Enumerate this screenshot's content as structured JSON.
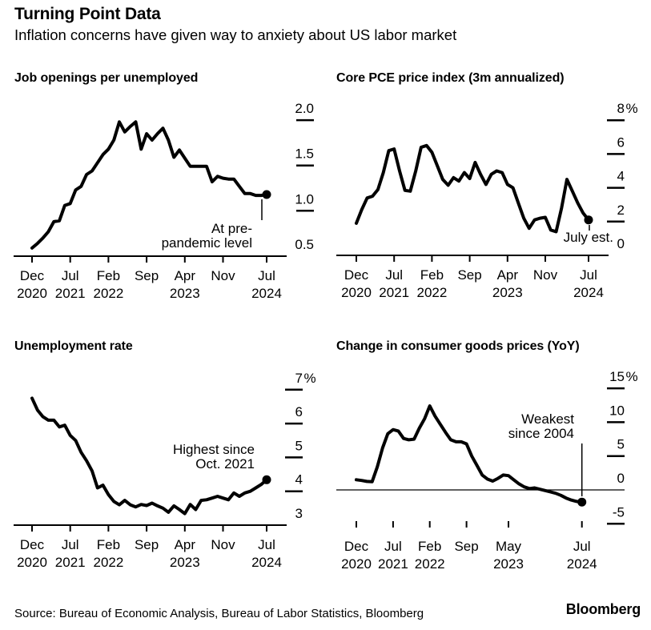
{
  "header": {
    "title": "Turning Point Data",
    "subtitle": "Inflation concerns have given way to anxiety about US labor market"
  },
  "footer": {
    "source": "Source: Bureau of Economic Analysis, Bureau of Labor Statistics, Bloomberg",
    "logo": "Bloomberg"
  },
  "colors": {
    "line": "#000000",
    "text": "#000000",
    "background": "#ffffff",
    "axis": "#000000"
  },
  "chart_data": [
    {
      "type": "line",
      "title": "Job openings per unemployed",
      "x_unit": "monthly",
      "x_range": [
        "Dec 2020",
        "Jul 2024"
      ],
      "x_tick_labels": [
        [
          "Dec",
          "2020"
        ],
        [
          "Jul",
          "2021"
        ],
        [
          "Feb",
          "2022"
        ],
        [
          "Sep",
          ""
        ],
        [
          "Apr",
          "2023"
        ],
        [
          "Nov",
          ""
        ],
        [
          "Jul",
          "2024"
        ]
      ],
      "x_tick_month_index": [
        0,
        7,
        14,
        21,
        28,
        35,
        43
      ],
      "y_tick_labels": [
        "2.0",
        "1.5",
        "1.0",
        "0.5"
      ],
      "y_tick_values": [
        2.0,
        1.5,
        1.0,
        0.5
      ],
      "ylim": [
        0.5,
        2.05
      ],
      "grid": false,
      "legend": null,
      "end_dot": true,
      "annotation": {
        "lines": [
          "At pre-",
          "pandemic level"
        ]
      },
      "values": [
        0.59,
        0.64,
        0.7,
        0.77,
        0.88,
        0.89,
        1.06,
        1.08,
        1.23,
        1.27,
        1.4,
        1.44,
        1.53,
        1.62,
        1.68,
        1.78,
        1.98,
        1.87,
        1.93,
        1.98,
        1.68,
        1.85,
        1.78,
        1.85,
        1.91,
        1.78,
        1.59,
        1.67,
        1.58,
        1.49,
        1.49,
        1.49,
        1.49,
        1.32,
        1.38,
        1.36,
        1.35,
        1.35,
        1.27,
        1.19,
        1.19,
        1.17,
        1.17,
        1.18
      ]
    },
    {
      "type": "line",
      "title": "Core PCE price index (3m annualized)",
      "x_unit": "monthly",
      "x_range": [
        "Dec 2020",
        "Jul 2024"
      ],
      "x_tick_labels": [
        [
          "Dec",
          "2020"
        ],
        [
          "Jul",
          "2021"
        ],
        [
          "Feb",
          "2022"
        ],
        [
          "Sep",
          ""
        ],
        [
          "Apr",
          "2023"
        ],
        [
          "Nov",
          ""
        ],
        [
          "Jul",
          "2024"
        ]
      ],
      "x_tick_month_index": [
        0,
        7,
        14,
        21,
        28,
        35,
        43
      ],
      "y_tick_labels": [
        "8%",
        "6",
        "4",
        "2",
        "0"
      ],
      "y_tick_values": [
        8,
        6,
        4,
        2,
        0
      ],
      "ylim": [
        0,
        8
      ],
      "grid": false,
      "legend": null,
      "end_dot": true,
      "annotation": {
        "lines": [
          "July est."
        ]
      },
      "values": [
        1.9,
        2.7,
        3.4,
        3.5,
        3.9,
        4.9,
        6.2,
        6.3,
        5.0,
        3.85,
        3.8,
        5.0,
        6.4,
        6.5,
        6.1,
        5.3,
        4.5,
        4.15,
        4.6,
        4.4,
        4.9,
        4.55,
        5.5,
        4.8,
        4.2,
        4.8,
        5.0,
        4.9,
        4.2,
        4.0,
        3.1,
        2.2,
        1.6,
        2.1,
        2.2,
        2.25,
        1.5,
        1.4,
        2.8,
        4.5,
        3.8,
        3.1,
        2.5,
        2.1
      ]
    },
    {
      "type": "line",
      "title": "Unemployment rate",
      "x_unit": "monthly",
      "x_range": [
        "Dec 2020",
        "Jul 2024"
      ],
      "x_tick_labels": [
        [
          "Dec",
          "2020"
        ],
        [
          "Jul",
          "2021"
        ],
        [
          "Feb",
          "2022"
        ],
        [
          "Sep",
          ""
        ],
        [
          "Apr",
          "2023"
        ],
        [
          "Nov",
          ""
        ],
        [
          "Jul",
          "2024"
        ]
      ],
      "x_tick_month_index": [
        0,
        7,
        14,
        21,
        28,
        35,
        43
      ],
      "y_tick_labels": [
        "7%",
        "6",
        "5",
        "4",
        "3"
      ],
      "y_tick_values": [
        7,
        6,
        5,
        4,
        3
      ],
      "ylim": [
        3,
        7
      ],
      "grid": false,
      "legend": null,
      "end_dot": true,
      "annotation": {
        "lines": [
          "Highest since",
          "Oct. 2021"
        ]
      },
      "values": [
        6.75,
        6.4,
        6.2,
        6.1,
        6.1,
        5.9,
        5.95,
        5.65,
        5.5,
        5.15,
        4.9,
        4.6,
        4.1,
        4.18,
        3.9,
        3.7,
        3.6,
        3.73,
        3.6,
        3.54,
        3.61,
        3.58,
        3.65,
        3.57,
        3.5,
        3.38,
        3.57,
        3.46,
        3.34,
        3.61,
        3.46,
        3.73,
        3.75,
        3.8,
        3.85,
        3.8,
        3.75,
        3.95,
        3.85,
        3.95,
        4.0,
        4.1,
        4.2,
        4.34
      ]
    },
    {
      "type": "line",
      "title": "Change in consumer goods prices (YoY)",
      "x_unit": "monthly",
      "x_range": [
        "Dec 2020",
        "Jul 2024"
      ],
      "x_tick_labels": [
        [
          "Dec",
          "2020"
        ],
        [
          "Jul",
          "2021"
        ],
        [
          "Feb",
          "2022"
        ],
        [
          "Sep",
          ""
        ],
        [
          "May",
          "2023"
        ],
        [
          "Jul",
          "2024"
        ]
      ],
      "x_tick_month_index": [
        0,
        7,
        14,
        21,
        29,
        43
      ],
      "y_tick_labels": [
        "15%",
        "10",
        "5",
        "0",
        "-5"
      ],
      "y_tick_values": [
        15,
        10,
        5,
        0,
        -5
      ],
      "ylim": [
        -5,
        15
      ],
      "zero_line": true,
      "grid": false,
      "legend": null,
      "end_dot": true,
      "annotation": {
        "lines": [
          "Weakest",
          "since 2004"
        ]
      },
      "values": [
        1.5,
        1.4,
        1.25,
        1.2,
        3.4,
        6.2,
        8.3,
        8.9,
        8.7,
        7.6,
        7.4,
        7.5,
        9.1,
        10.5,
        12.4,
        10.9,
        9.7,
        8.5,
        7.4,
        7.1,
        7.1,
        6.8,
        5.0,
        3.6,
        2.2,
        1.6,
        1.3,
        1.7,
        2.2,
        2.1,
        1.5,
        0.9,
        0.45,
        0.2,
        0.3,
        0.1,
        -0.1,
        -0.3,
        -0.5,
        -0.8,
        -1.2,
        -1.5,
        -1.7,
        -1.8
      ]
    }
  ]
}
